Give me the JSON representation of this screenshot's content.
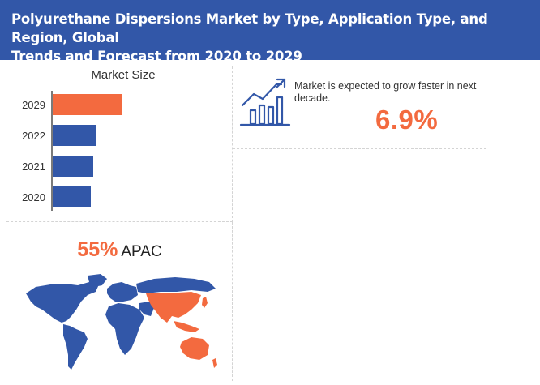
{
  "header": {
    "title_line1": "Polyurethane Dispersions Market by Type, Application Type, and Region, Global",
    "title_line2": "Trends and Forecast from 2020 to 2029"
  },
  "chart_data": {
    "type": "bar",
    "orientation": "horizontal",
    "title": "Market Size",
    "categories": [
      "2029",
      "2022",
      "2021",
      "2020"
    ],
    "values": [
      86,
      53,
      50,
      47
    ],
    "value_scale": "relative (no axis printed)",
    "bar_colors": [
      "#f36a3f",
      "#3257a8",
      "#3257a8",
      "#3257a8"
    ],
    "grid": false,
    "legend": "none"
  },
  "growth": {
    "text": "Market is expected to grow faster in next decade.",
    "value": "6.9%"
  },
  "region": {
    "percent": "55%",
    "name": "APAC"
  },
  "colors": {
    "header": "#3257a8",
    "accent": "#f36a3f",
    "bar": "#3257a8",
    "map_land": "#3257a8",
    "map_highlight": "#f36a3f"
  },
  "icons": {
    "growth": "growth-chart-icon",
    "map": "world-map"
  }
}
